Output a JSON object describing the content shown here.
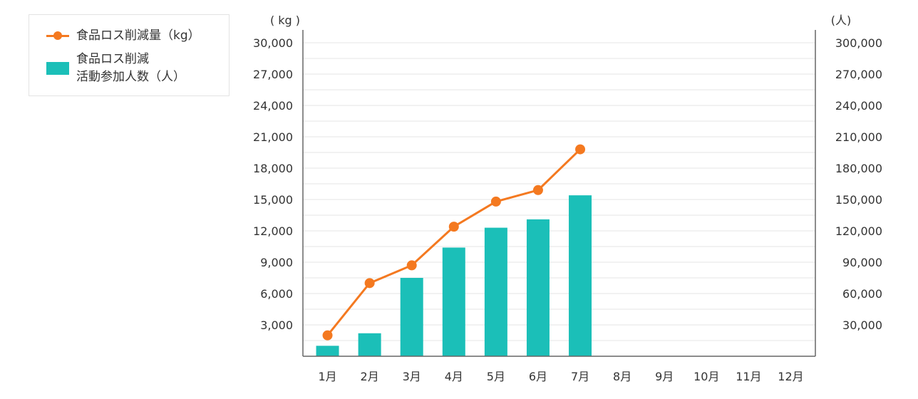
{
  "chart_data": {
    "type": "bar+line",
    "categories": [
      "1月",
      "2月",
      "3月",
      "4月",
      "5月",
      "6月",
      "7月",
      "8月",
      "9月",
      "10月",
      "11月",
      "12月"
    ],
    "series": [
      {
        "name": "食品ロス削減量（kg）",
        "type": "line",
        "axis": "left",
        "color": "#f47920",
        "values": [
          2000,
          7000,
          8700,
          12400,
          14800,
          15900,
          19800,
          null,
          null,
          null,
          null,
          null
        ]
      },
      {
        "name": "食品ロス削減\n活動参加人数（人）",
        "type": "bar",
        "axis": "right",
        "color": "#1bbfb8",
        "values": [
          10000,
          22000,
          75000,
          104000,
          123000,
          131000,
          154000,
          null,
          null,
          null,
          null,
          null
        ]
      }
    ],
    "y_left": {
      "unit": "( kg )",
      "min": 0,
      "max": 30000,
      "ticks": [
        3000,
        6000,
        9000,
        12000,
        15000,
        18000,
        21000,
        24000,
        27000,
        30000
      ],
      "tick_labels": [
        "3,000",
        "6,000",
        "9,000",
        "12,000",
        "15,000",
        "18,000",
        "21,000",
        "24,000",
        "27,000",
        "30,000"
      ]
    },
    "y_right": {
      "unit": "(人)",
      "min": 0,
      "max": 300000,
      "ticks": [
        30000,
        60000,
        90000,
        120000,
        150000,
        180000,
        210000,
        240000,
        270000,
        300000
      ],
      "tick_labels": [
        "30,000",
        "60,000",
        "90,000",
        "120,000",
        "150,000",
        "180,000",
        "210,000",
        "240,000",
        "270,000",
        "300,000"
      ]
    },
    "grid": true,
    "legend_position": "top-left"
  },
  "legend": {
    "line_label": "食品ロス削減量（kg）",
    "bar_label": "食品ロス削減\n活動参加人数（人）"
  }
}
